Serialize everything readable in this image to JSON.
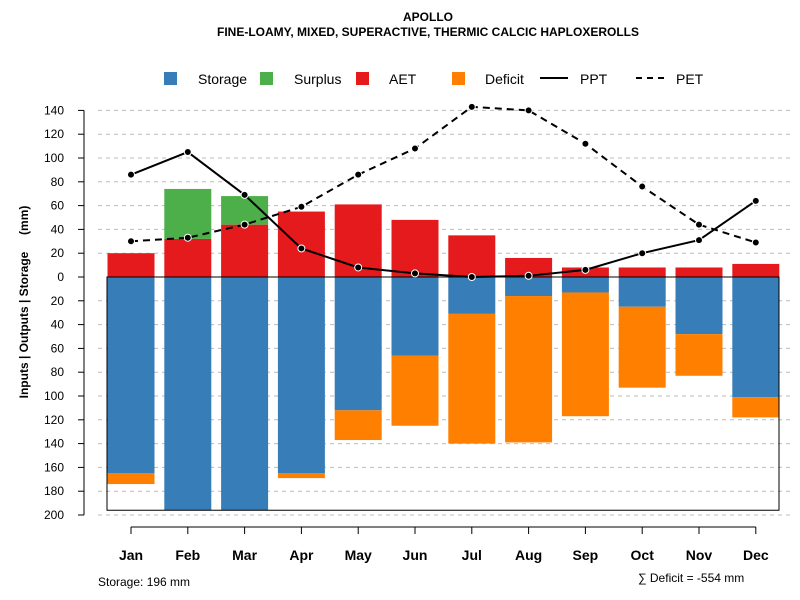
{
  "colors": {
    "storage": "#377EB8",
    "surplus": "#4DAF4A",
    "aet": "#E41A1C",
    "deficit": "#FF7F00",
    "line": "#000000",
    "grid": "#BBBBBB"
  },
  "chart_data": {
    "type": "bar",
    "title": "APOLLO",
    "subtitle": "FINE-LOAMY, MIXED, SUPERACTIVE, THERMIC CALCIC HAPLOXEROLLS",
    "ylabel": "Inputs | Outputs | Storage     (mm)",
    "xlabel": "",
    "ylim": [
      -200,
      145
    ],
    "yticks": [
      140,
      120,
      100,
      80,
      60,
      40,
      20,
      0,
      -20,
      -40,
      -60,
      -80,
      -100,
      -120,
      -140,
      -160,
      -180,
      -200
    ],
    "ytick_labels": [
      "140",
      "120",
      "100",
      "80",
      "60",
      "40",
      "20",
      "0",
      "20",
      "40",
      "60",
      "80",
      "100",
      "120",
      "140",
      "160",
      "180",
      "200"
    ],
    "categories": [
      "Jan",
      "Feb",
      "Mar",
      "Apr",
      "May",
      "Jun",
      "Jul",
      "Aug",
      "Sep",
      "Oct",
      "Nov",
      "Dec"
    ],
    "legend": [
      "Storage",
      "Surplus",
      "AET",
      "Deficit",
      "PPT",
      "PET"
    ],
    "series": {
      "aet": [
        20,
        32,
        44,
        55,
        61,
        48,
        35,
        16,
        8,
        8,
        8,
        11
      ],
      "surplus": [
        0,
        42,
        24,
        0,
        0,
        0,
        0,
        0,
        0,
        0,
        0,
        0
      ],
      "storage": [
        165,
        196,
        196,
        165,
        112,
        66,
        31,
        16,
        13,
        25,
        48,
        101
      ],
      "deficit": [
        9,
        0,
        0,
        4,
        25,
        59,
        109,
        123,
        104,
        68,
        35,
        17
      ],
      "ppt": [
        86,
        105,
        69,
        24,
        8,
        3,
        0,
        1,
        6,
        20,
        31,
        64
      ],
      "pet": [
        30,
        33,
        44,
        59,
        86,
        108,
        143,
        140,
        112,
        76,
        44,
        29
      ]
    },
    "storage_capacity": 196,
    "footer_left": "Storage: 196 mm",
    "footer_right": "∑ Deficit = -554 mm"
  }
}
